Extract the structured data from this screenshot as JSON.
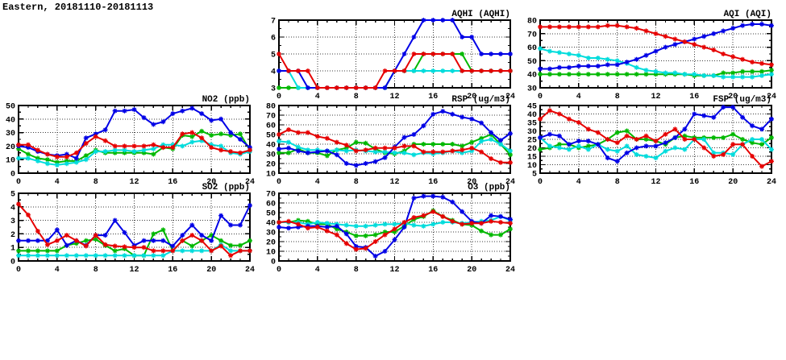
{
  "page": {
    "title": "Eastern, 20181110-20181113"
  },
  "colors": {
    "blue": "#0000e6",
    "red": "#e60000",
    "green": "#00b800",
    "cyan": "#00dcdc"
  },
  "chart_data": [
    {
      "id": "aqhi",
      "type": "line",
      "title": "AQHI (AQHI)",
      "xlim": [
        0,
        24
      ],
      "xticks": [
        0,
        4,
        8,
        12,
        16,
        20,
        24
      ],
      "ylim": [
        3,
        7
      ],
      "yticks": [
        3,
        4,
        5,
        6,
        7
      ],
      "x_unit": "hour",
      "grid": "dotted",
      "series": [
        {
          "name": "green",
          "color": "#00b800",
          "values": [
            3,
            3,
            3,
            3,
            3,
            3,
            3,
            3,
            3,
            3,
            3,
            3,
            4,
            4,
            4,
            5,
            5,
            5,
            5,
            5,
            4,
            4,
            4,
            4,
            4
          ]
        },
        {
          "name": "cyan",
          "color": "#00dcdc",
          "values": [
            4,
            4,
            3,
            3,
            3,
            3,
            3,
            3,
            3,
            3,
            3,
            3,
            4,
            4,
            4,
            4,
            4,
            4,
            4,
            4,
            4,
            4,
            4,
            4,
            4
          ]
        },
        {
          "name": "blue",
          "color": "#0000e6",
          "values": [
            4,
            4,
            4,
            3,
            3,
            3,
            3,
            3,
            3,
            3,
            3,
            3,
            4,
            5,
            6,
            7,
            7,
            7,
            7,
            6,
            6,
            5,
            5,
            5,
            5
          ]
        },
        {
          "name": "red",
          "color": "#e60000",
          "values": [
            5,
            4,
            4,
            4,
            3,
            3,
            3,
            3,
            3,
            3,
            3,
            4,
            4,
            4,
            5,
            5,
            5,
            5,
            5,
            4,
            4,
            4,
            4,
            4,
            4
          ]
        }
      ]
    },
    {
      "id": "aqi",
      "type": "line",
      "title": "AQI (AQI)",
      "xlim": [
        0,
        24
      ],
      "xticks": [
        0,
        4,
        8,
        12,
        16,
        20,
        24
      ],
      "ylim": [
        30,
        80
      ],
      "yticks": [
        30,
        40,
        50,
        60,
        70,
        80
      ],
      "x_unit": "hour",
      "grid": "dotted",
      "series": [
        {
          "name": "green",
          "color": "#00b800",
          "values": [
            40,
            40,
            40,
            40,
            40,
            40,
            40,
            40,
            40,
            40,
            40,
            40,
            40,
            40,
            40,
            40,
            39,
            39,
            39,
            41,
            41,
            42,
            42,
            42,
            43
          ]
        },
        {
          "name": "cyan",
          "color": "#00dcdc",
          "values": [
            59,
            57,
            56,
            55,
            54,
            52,
            52,
            51,
            50,
            48,
            45,
            43,
            42,
            41,
            41,
            40,
            40,
            39,
            39,
            38,
            38,
            38,
            38,
            39,
            40
          ]
        },
        {
          "name": "blue",
          "color": "#0000e6",
          "values": [
            44,
            44,
            45,
            45,
            46,
            46,
            46,
            47,
            47,
            49,
            51,
            54,
            57,
            60,
            62,
            64,
            66,
            68,
            70,
            72,
            74,
            76,
            77,
            77,
            76
          ]
        },
        {
          "name": "red",
          "color": "#e60000",
          "values": [
            75,
            75,
            75,
            75,
            75,
            75,
            75,
            76,
            76,
            75,
            74,
            72,
            70,
            68,
            66,
            64,
            62,
            60,
            58,
            55,
            53,
            51,
            49,
            48,
            47
          ]
        }
      ]
    },
    {
      "id": "no2",
      "type": "line",
      "title": "NO2 (ppb)",
      "xlim": [
        0,
        24
      ],
      "xticks": [
        0,
        4,
        8,
        12,
        16,
        20,
        24
      ],
      "ylim": [
        0,
        50
      ],
      "yticks": [
        0,
        10,
        20,
        30,
        40,
        50
      ],
      "x_unit": "hour",
      "grid": "dotted",
      "series": [
        {
          "name": "green",
          "color": "#00b800",
          "values": [
            18,
            14,
            11,
            10,
            8,
            9,
            9,
            13,
            17,
            15,
            15,
            15,
            15,
            15,
            14,
            19,
            18,
            28,
            27,
            31,
            28,
            29,
            28,
            29,
            17
          ]
        },
        {
          "name": "cyan",
          "color": "#00dcdc",
          "values": [
            11,
            11,
            9,
            7,
            6,
            7,
            8,
            10,
            16,
            16,
            17,
            17,
            16,
            17,
            18,
            21,
            21,
            20,
            23,
            24,
            21,
            20,
            15,
            14,
            16
          ]
        },
        {
          "name": "blue",
          "color": "#0000e6",
          "values": [
            20,
            19,
            16,
            14,
            13,
            14,
            11,
            26,
            29,
            32,
            46,
            46,
            47,
            41,
            36,
            38,
            44,
            46,
            48,
            44,
            39,
            40,
            30,
            25,
            19
          ]
        },
        {
          "name": "red",
          "color": "#e60000",
          "values": [
            21,
            21,
            17,
            14,
            12,
            12,
            15,
            22,
            27,
            24,
            20,
            20,
            20,
            20,
            21,
            19,
            19,
            29,
            30,
            26,
            19,
            17,
            16,
            15,
            17
          ]
        }
      ]
    },
    {
      "id": "rsp",
      "type": "line",
      "title": "RSP (ug/m3)",
      "xlim": [
        0,
        24
      ],
      "xticks": [
        0,
        4,
        8,
        12,
        16,
        20,
        24
      ],
      "ylim": [
        10,
        80
      ],
      "yticks": [
        10,
        20,
        30,
        40,
        50,
        60,
        70,
        80
      ],
      "x_unit": "hour",
      "grid": "dotted",
      "series": [
        {
          "name": "green",
          "color": "#00b800",
          "values": [
            31,
            31,
            35,
            31,
            31,
            28,
            34,
            36,
            42,
            41,
            35,
            31,
            30,
            33,
            40,
            40,
            40,
            40,
            40,
            38,
            42,
            46,
            50,
            40,
            29
          ]
        },
        {
          "name": "cyan",
          "color": "#00dcdc",
          "values": [
            43,
            42,
            37,
            34,
            34,
            33,
            34,
            33,
            34,
            33,
            32,
            32,
            31,
            31,
            29,
            31,
            30,
            31,
            33,
            31,
            33,
            43,
            45,
            40,
            33
          ]
        },
        {
          "name": "blue",
          "color": "#0000e6",
          "values": [
            35,
            36,
            33,
            31,
            32,
            33,
            29,
            20,
            18,
            20,
            22,
            26,
            37,
            47,
            50,
            59,
            71,
            74,
            71,
            68,
            66,
            62,
            52,
            44,
            51
          ]
        },
        {
          "name": "red",
          "color": "#e60000",
          "values": [
            50,
            55,
            52,
            52,
            48,
            46,
            42,
            39,
            33,
            34,
            36,
            36,
            36,
            38,
            38,
            32,
            32,
            32,
            33,
            34,
            36,
            32,
            25,
            21,
            21
          ]
        }
      ]
    },
    {
      "id": "fsp",
      "type": "line",
      "title": "FSP (ug/m3)",
      "xlim": [
        0,
        24
      ],
      "xticks": [
        0,
        4,
        8,
        12,
        16,
        20,
        24
      ],
      "ylim": [
        5,
        45
      ],
      "yticks": [
        5,
        10,
        15,
        20,
        25,
        30,
        35,
        40,
        45
      ],
      "x_unit": "hour",
      "grid": "dotted",
      "series": [
        {
          "name": "green",
          "color": "#00b800",
          "values": [
            19,
            20,
            22,
            22,
            20,
            21,
            22,
            25,
            29,
            30,
            25,
            25,
            24,
            22,
            26,
            27,
            26,
            26,
            26,
            26,
            28,
            25,
            23,
            22,
            26
          ]
        },
        {
          "name": "cyan",
          "color": "#00dcdc",
          "values": [
            26,
            21,
            20,
            19,
            21,
            19,
            22,
            19,
            18,
            21,
            16,
            15,
            14,
            18,
            20,
            19,
            25,
            25,
            17,
            17,
            16,
            22,
            25,
            25,
            19
          ]
        },
        {
          "name": "blue",
          "color": "#0000e6",
          "values": [
            26,
            28,
            27,
            22,
            24,
            24,
            22,
            14,
            12,
            17,
            20,
            21,
            21,
            23,
            26,
            31,
            40,
            39,
            38,
            44,
            44,
            38,
            33,
            31,
            37
          ]
        },
        {
          "name": "red",
          "color": "#e60000",
          "values": [
            37,
            42,
            40,
            37,
            35,
            31,
            29,
            25,
            23,
            27,
            25,
            27,
            24,
            28,
            31,
            25,
            25,
            20,
            15,
            16,
            22,
            22,
            15,
            9,
            12
          ]
        }
      ]
    },
    {
      "id": "so2",
      "type": "line",
      "title": "SO2 (ppb)",
      "xlim": [
        0,
        24
      ],
      "xticks": [
        0,
        4,
        8,
        12,
        16,
        20,
        24
      ],
      "ylim": [
        0,
        5
      ],
      "yticks": [
        0,
        1,
        2,
        3,
        4,
        5
      ],
      "x_unit": "hour",
      "grid": "dotted",
      "series": [
        {
          "name": "green",
          "color": "#00b800",
          "values": [
            0.75,
            0.75,
            0.75,
            0.75,
            0.75,
            1.15,
            1.3,
            1.5,
            1.6,
            1.15,
            0.75,
            0.9,
            0.4,
            0.4,
            2,
            2.3,
            0.75,
            1.5,
            1.1,
            1.5,
            1.9,
            1.5,
            1.15,
            1.15,
            1.5
          ]
        },
        {
          "name": "cyan",
          "color": "#00dcdc",
          "values": [
            0.4,
            0.4,
            0.4,
            0.4,
            0.4,
            0.4,
            0.4,
            0.4,
            0.4,
            0.4,
            0.4,
            0.4,
            0.4,
            0.4,
            0.4,
            0.4,
            0.75,
            0.75,
            0.75,
            0.75,
            0.75,
            1.2,
            0.75,
            0.75,
            0.75
          ]
        },
        {
          "name": "blue",
          "color": "#0000e6",
          "values": [
            1.5,
            1.5,
            1.5,
            1.5,
            2.3,
            1.15,
            1.5,
            1.15,
            1.9,
            1.9,
            3,
            2.1,
            1.15,
            1.5,
            1.5,
            1.5,
            1.1,
            1.9,
            2.65,
            1.9,
            1.5,
            3.35,
            2.65,
            2.65,
            4.1
          ]
        },
        {
          "name": "red",
          "color": "#e60000",
          "values": [
            4.2,
            3.4,
            2.2,
            1.2,
            1.5,
            1.9,
            1.5,
            1.1,
            1.9,
            1.2,
            1.1,
            1.05,
            1,
            1,
            0.75,
            0.75,
            0.75,
            1.5,
            1.9,
            1.5,
            0.75,
            1.1,
            0.4,
            0.75,
            0.75
          ]
        }
      ]
    },
    {
      "id": "o3",
      "type": "line",
      "title": "O3 (ppb)",
      "xlim": [
        0,
        24
      ],
      "xticks": [
        0,
        4,
        8,
        12,
        16,
        20,
        24
      ],
      "ylim": [
        0,
        70
      ],
      "yticks": [
        0,
        10,
        20,
        30,
        40,
        50,
        60,
        70
      ],
      "x_unit": "hour",
      "grid": "dotted",
      "series": [
        {
          "name": "green",
          "color": "#00b800",
          "values": [
            40,
            40,
            42,
            41,
            38,
            38,
            33,
            30,
            26,
            26,
            27,
            30,
            30,
            36,
            43,
            46,
            52,
            46,
            42,
            38,
            37,
            31,
            27,
            27,
            33
          ]
        },
        {
          "name": "cyan",
          "color": "#00dcdc",
          "values": [
            40,
            40,
            40,
            38,
            40,
            39,
            38,
            37,
            36,
            36,
            37,
            38,
            38,
            39,
            37,
            36,
            38,
            40,
            40,
            39,
            40,
            41,
            42,
            46,
            42
          ]
        },
        {
          "name": "blue",
          "color": "#0000e6",
          "values": [
            35,
            34,
            35,
            36,
            36,
            35,
            36,
            28,
            15,
            14,
            5,
            10,
            22,
            35,
            65,
            67,
            67,
            66,
            61,
            51,
            41,
            39,
            47,
            46,
            43
          ]
        },
        {
          "name": "red",
          "color": "#e60000",
          "values": [
            40,
            41,
            38,
            34,
            35,
            31,
            27,
            18,
            12,
            13,
            20,
            27,
            33,
            40,
            45,
            47,
            51,
            46,
            41,
            38,
            39,
            39,
            41,
            40,
            39
          ]
        }
      ]
    }
  ]
}
